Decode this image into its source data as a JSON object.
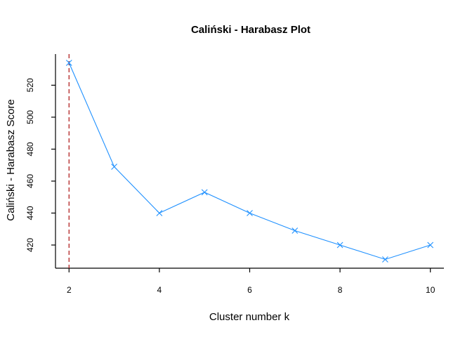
{
  "chart_data": {
    "type": "line",
    "title": "Caliński - Harabasz Plot",
    "xlabel": "Cluster number k",
    "ylabel": "Caliński - Harabasz Score",
    "x": [
      2,
      3,
      4,
      5,
      6,
      7,
      8,
      9,
      10
    ],
    "series": [
      {
        "values": [
          534,
          469,
          440,
          453,
          440,
          429,
          420,
          411,
          420
        ]
      }
    ],
    "xticks": [
      2,
      4,
      6,
      8,
      10
    ],
    "yticks": [
      420,
      440,
      460,
      480,
      500,
      520
    ],
    "xlim": [
      1.7,
      10.3
    ],
    "ylim": [
      405.5,
      539.5
    ],
    "reference_line_x": 2,
    "marker": "x",
    "grid": false,
    "colors": {
      "series": "#1E90FF",
      "reference": "#B22222",
      "axis": "#000000"
    }
  }
}
